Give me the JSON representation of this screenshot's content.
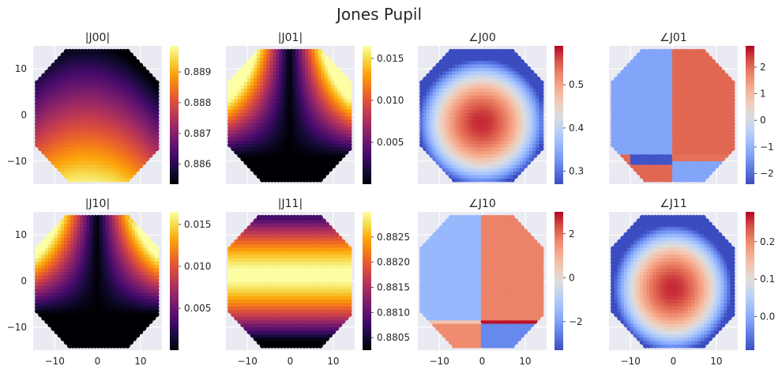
{
  "figure": {
    "title": "Jones Pupil",
    "background": "#ffffff",
    "axes_face": "#eaeaf2",
    "grid_color": "#ffffff"
  },
  "chart_data": [
    {
      "type": "heatmap",
      "title": "|J00|",
      "pattern": "j00",
      "cmap": "inferno",
      "xlim": [
        -15,
        15
      ],
      "ylim": [
        -15,
        15
      ],
      "xticks": [
        -10,
        0,
        10
      ],
      "yticks": [
        -10,
        0,
        10
      ],
      "show_xtick_labels": false,
      "show_ytick_labels": true,
      "colorbar": {
        "range": [
          0.88535,
          0.88985
        ],
        "ticks": [
          0.886,
          0.887,
          0.888,
          0.889
        ],
        "labels": [
          "0.886",
          "0.887",
          "0.888",
          "0.889"
        ]
      }
    },
    {
      "type": "heatmap",
      "title": "|J01|",
      "pattern": "j01",
      "cmap": "inferno",
      "xlim": [
        -15,
        15
      ],
      "ylim": [
        -15,
        15
      ],
      "xticks": [
        -10,
        0,
        10
      ],
      "yticks": [
        -10,
        0,
        10
      ],
      "show_xtick_labels": false,
      "show_ytick_labels": false,
      "colorbar": {
        "range": [
          0.0,
          0.0165
        ],
        "ticks": [
          0.005,
          0.01,
          0.015
        ],
        "labels": [
          "0.005",
          "0.010",
          "0.015"
        ]
      }
    },
    {
      "type": "heatmap",
      "title": "∠J00",
      "pattern": "a00",
      "cmap": "coolwarm",
      "xlim": [
        -15,
        15
      ],
      "ylim": [
        -15,
        15
      ],
      "xticks": [
        -10,
        0,
        10
      ],
      "yticks": [
        -10,
        0,
        10
      ],
      "show_xtick_labels": false,
      "show_ytick_labels": false,
      "colorbar": {
        "range": [
          0.27,
          0.59
        ],
        "ticks": [
          0.3,
          0.4,
          0.5
        ],
        "labels": [
          "0.3",
          "0.4",
          "0.5"
        ]
      }
    },
    {
      "type": "heatmap",
      "title": "∠J01",
      "pattern": "a01",
      "cmap": "coolwarm",
      "xlim": [
        -15,
        15
      ],
      "ylim": [
        -15,
        15
      ],
      "xticks": [
        -10,
        0,
        10
      ],
      "yticks": [
        -10,
        0,
        10
      ],
      "show_xtick_labels": false,
      "show_ytick_labels": false,
      "colorbar": {
        "range": [
          -2.4,
          2.8
        ],
        "ticks": [
          -2,
          -1,
          0,
          1,
          2
        ],
        "labels": [
          "−2",
          "−1",
          "0",
          "1",
          "2"
        ]
      }
    },
    {
      "type": "heatmap",
      "title": "|J10|",
      "pattern": "j10",
      "cmap": "inferno",
      "xlim": [
        -15,
        15
      ],
      "ylim": [
        -15,
        15
      ],
      "xticks": [
        -10,
        0,
        10
      ],
      "yticks": [
        -10,
        0,
        10
      ],
      "show_xtick_labels": true,
      "show_ytick_labels": true,
      "colorbar": {
        "range": [
          0.0,
          0.0165
        ],
        "ticks": [
          0.005,
          0.01,
          0.015
        ],
        "labels": [
          "0.005",
          "0.010",
          "0.015"
        ]
      }
    },
    {
      "type": "heatmap",
      "title": "|J11|",
      "pattern": "j11",
      "cmap": "inferno",
      "xlim": [
        -15,
        15
      ],
      "ylim": [
        -15,
        15
      ],
      "xticks": [
        -10,
        0,
        10
      ],
      "yticks": [
        -10,
        0,
        10
      ],
      "show_xtick_labels": true,
      "show_ytick_labels": false,
      "colorbar": {
        "range": [
          0.88025,
          0.883
        ],
        "ticks": [
          0.8805,
          0.881,
          0.8815,
          0.882,
          0.8825
        ],
        "labels": [
          "0.8805",
          "0.8810",
          "0.8815",
          "0.8820",
          "0.8825"
        ]
      }
    },
    {
      "type": "heatmap",
      "title": "∠J10",
      "pattern": "a10",
      "cmap": "coolwarm",
      "xlim": [
        -15,
        15
      ],
      "ylim": [
        -15,
        15
      ],
      "xticks": [
        -10,
        0,
        10
      ],
      "yticks": [
        -10,
        0,
        10
      ],
      "show_xtick_labels": true,
      "show_ytick_labels": false,
      "colorbar": {
        "range": [
          -3.3,
          3.0
        ],
        "ticks": [
          -2,
          0,
          2
        ],
        "labels": [
          "−2",
          "0",
          "2"
        ]
      }
    },
    {
      "type": "heatmap",
      "title": "∠J11",
      "pattern": "a11",
      "cmap": "coolwarm",
      "xlim": [
        -15,
        15
      ],
      "ylim": [
        -15,
        15
      ],
      "xticks": [
        -10,
        0,
        10
      ],
      "yticks": [
        -10,
        0,
        10
      ],
      "show_xtick_labels": true,
      "show_ytick_labels": false,
      "colorbar": {
        "range": [
          -0.09,
          0.28
        ],
        "ticks": [
          0.0,
          0.1,
          0.2
        ],
        "labels": [
          "0.0",
          "0.1",
          "0.2"
        ]
      }
    }
  ]
}
